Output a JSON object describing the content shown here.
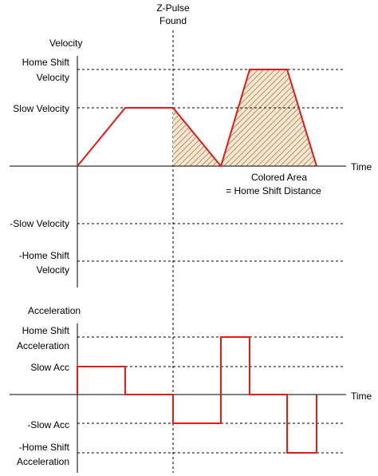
{
  "zpulse": {
    "line1": "Z-Pulse",
    "line2": "Found"
  },
  "velocity": {
    "title": "Velocity",
    "home_shift_line1": "Home Shift",
    "home_shift_line2": "Velocity",
    "slow": "Slow Velocity",
    "neg_slow": "-Slow Velocity",
    "neg_home_shift_line1": "-Home Shift",
    "neg_home_shift_line2": "Velocity",
    "time": "Time",
    "note_line1": "Colored Area",
    "note_line2": "= Home Shift Distance"
  },
  "acceleration": {
    "title": "Acceleration",
    "home_shift_line1": "Home Shift",
    "home_shift_line2": "Acceleration",
    "slow": "Slow Acc",
    "neg_slow": "-Slow Acc",
    "neg_home_shift_line1": "-Home Shift",
    "neg_home_shift_line2": "Acceleration",
    "time": "Time"
  },
  "colors": {
    "profile": "#e31b1b",
    "hatch": "#b07a3a",
    "axis": "#000000"
  }
}
